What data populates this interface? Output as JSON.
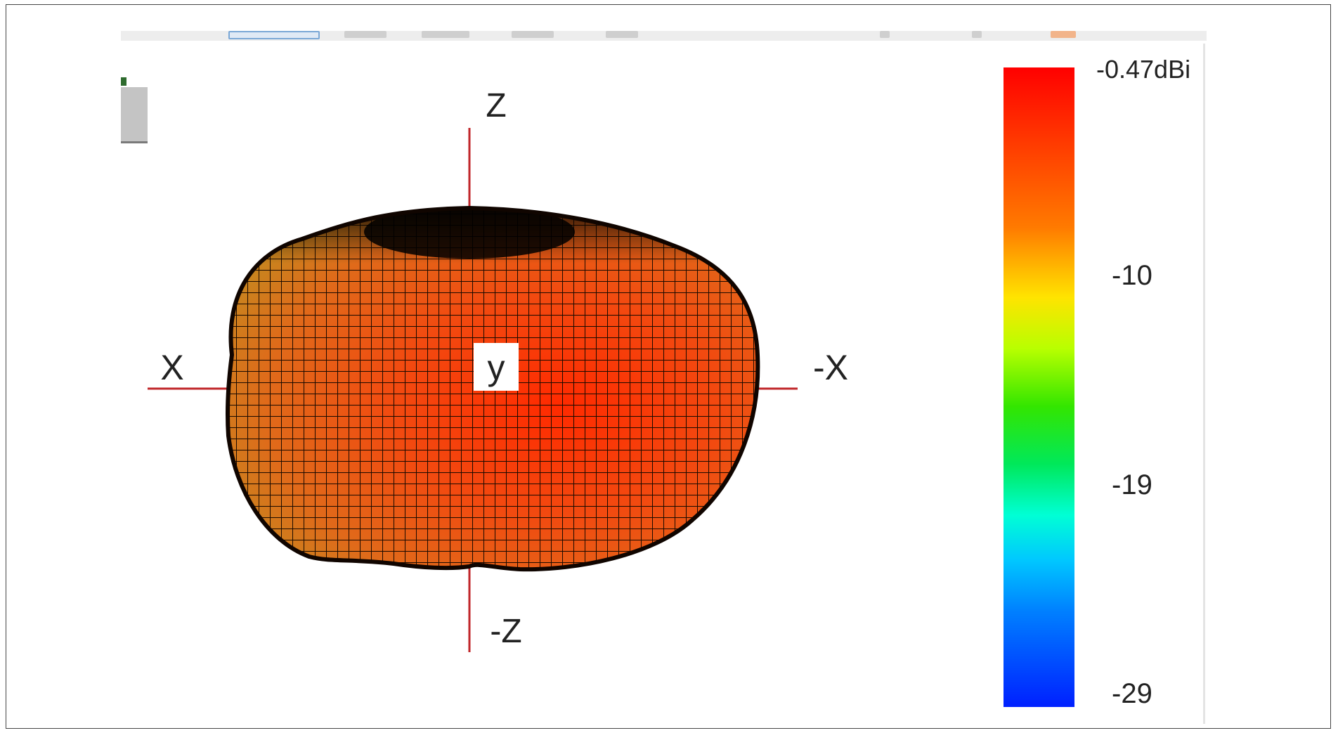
{
  "axes": {
    "z_pos": "Z",
    "z_neg": "-Z",
    "x_pos": "X",
    "x_neg": "-X",
    "y": "y"
  },
  "legend": {
    "max_label": "-0.47dBi",
    "tick_1": "-10",
    "tick_2": "-19",
    "min_label": "-29"
  },
  "colors": {
    "axis_line": "#c0262a",
    "surface_main": "#f04a12",
    "surface_edge": "#d4781a",
    "mesh": "#1a0a00"
  }
}
